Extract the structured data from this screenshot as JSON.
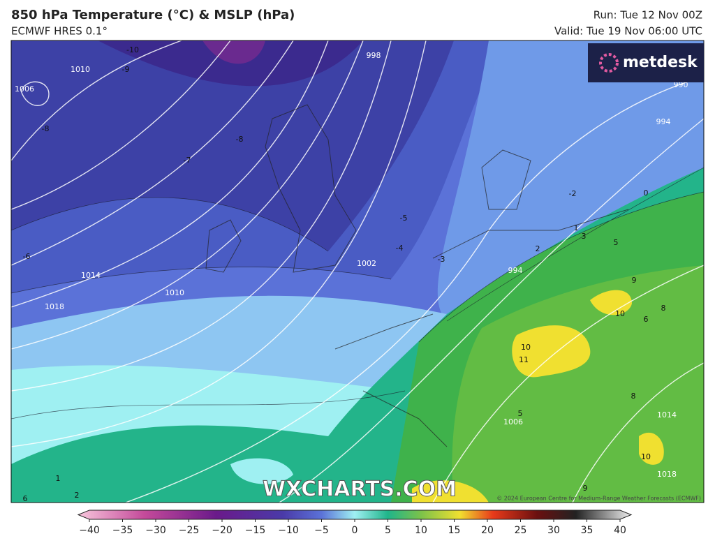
{
  "header": {
    "title": "850 hPa Temperature (°C) & MSLP (hPa)",
    "subtitle": "ECMWF HRES 0.1°",
    "run": "Run: Tue 12 Nov 00Z",
    "valid": "Valid: Tue 19 Nov 06:00 UTC"
  },
  "logo": "metdesk",
  "watermark": "WXCHARTS.COM",
  "copyright": "© 2024 European Centre for Medium-Range Weather Forecasts (ECMWF)",
  "map": {
    "isobar_labels": [
      "1010",
      "1006",
      "998",
      "1002",
      "1014",
      "1018",
      "1010",
      "994",
      "990",
      "994",
      "1006",
      "1014",
      "1018"
    ],
    "temperature_labels": [
      "-10",
      "-9",
      "-8",
      "-8",
      "-7",
      "-6",
      "-5",
      "-4",
      "-3",
      "-2",
      "0",
      "1",
      "2",
      "3",
      "5",
      "9",
      "10",
      "8",
      "6",
      "10",
      "11",
      "5",
      "8",
      "10",
      "9",
      "1",
      "2",
      "6"
    ]
  },
  "colorbar": {
    "lim": [
      -40,
      40
    ],
    "ticks": [
      {
        "value": -40,
        "label": "−40"
      },
      {
        "value": -35,
        "label": "−35"
      },
      {
        "value": -30,
        "label": "−30"
      },
      {
        "value": -25,
        "label": "−25"
      },
      {
        "value": -20,
        "label": "−20"
      },
      {
        "value": -15,
        "label": "−15"
      },
      {
        "value": -10,
        "label": "−10"
      },
      {
        "value": -5,
        "label": "−5"
      },
      0,
      5,
      10,
      15,
      20,
      25,
      30,
      35,
      40
    ]
  }
}
